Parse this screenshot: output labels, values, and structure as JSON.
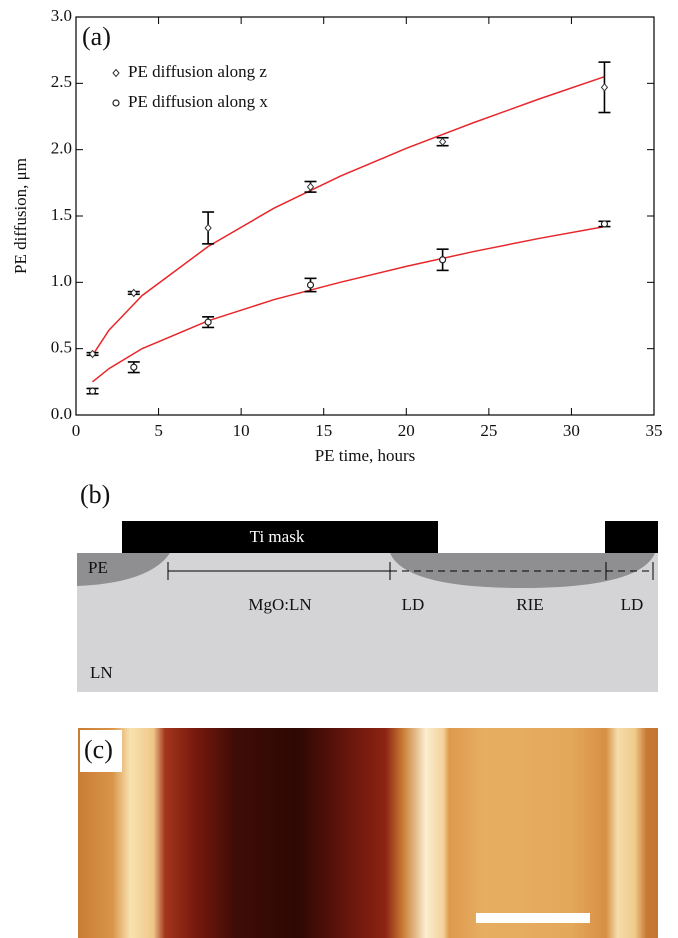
{
  "chart_data": {
    "type": "scatter",
    "annotations": [
      "(a)"
    ],
    "xlabel": "PE time, hours",
    "ylabel": "PE diffusion, μm",
    "xlim": [
      0,
      35
    ],
    "xticks": [
      0,
      5,
      10,
      15,
      20,
      25,
      30,
      35
    ],
    "ylim": [
      0,
      3
    ],
    "yticks": [
      {
        "value": 0,
        "label": "0.0"
      },
      0.5,
      {
        "value": 1,
        "label": "1.0"
      },
      1.5,
      {
        "value": 2,
        "label": "2.0"
      },
      2.5,
      {
        "value": 3,
        "label": "3.0"
      }
    ],
    "legend": "upper left",
    "x": [
      1,
      3.5,
      8,
      14.2,
      22.2,
      32
    ],
    "series": [
      {
        "name": "PE diffusion along z",
        "marker": "diamond",
        "color": "#333333",
        "values": [
          0.46,
          0.92,
          1.41,
          1.72,
          2.06,
          2.47
        ],
        "errors": [
          0.01,
          0.01,
          0.12,
          0.04,
          0.03,
          0.19
        ]
      },
      {
        "name": "PE diffusion along x",
        "marker": "circle",
        "color": "#222222",
        "values": [
          0.18,
          0.36,
          0.7,
          0.98,
          1.17,
          1.44
        ],
        "errors": [
          0.02,
          0.04,
          0.04,
          0.05,
          0.08,
          0.02
        ]
      }
    ],
    "fits": [
      {
        "color": "#e8262a",
        "x": [
          1,
          2,
          4,
          8,
          12,
          16,
          20,
          24,
          28,
          32
        ],
        "values": [
          0.45,
          0.64,
          0.9,
          1.27,
          1.56,
          1.8,
          2.01,
          2.2,
          2.38,
          2.55
        ]
      },
      {
        "color": "#e8262a",
        "x": [
          1,
          2,
          4,
          8,
          12,
          16,
          20,
          24,
          28,
          32
        ],
        "values": [
          0.25,
          0.35,
          0.5,
          0.71,
          0.87,
          1.0,
          1.12,
          1.23,
          1.33,
          1.42
        ]
      }
    ]
  },
  "diagram": {
    "label": "(b)",
    "mask": "Ti mask",
    "pe": "PE",
    "regions": [
      "MgO:LN",
      "LD",
      "RIE",
      "LD"
    ],
    "substrate": "LN"
  },
  "image": {
    "label": "(c)"
  }
}
